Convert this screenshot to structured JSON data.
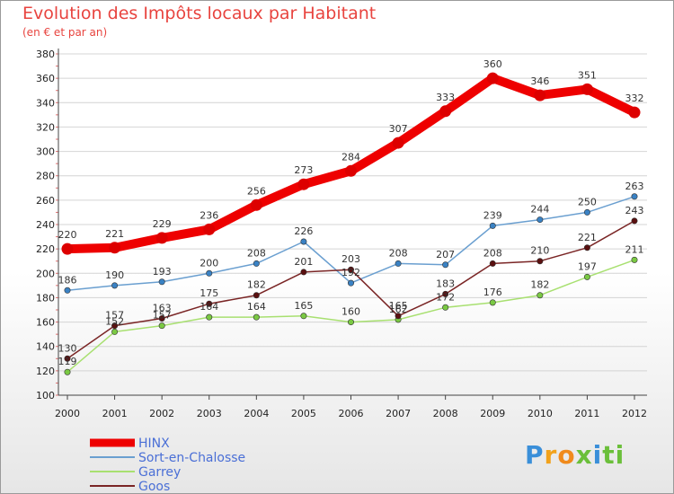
{
  "title": "Evolution des Impôts locaux par Habitant",
  "subtitle": "(en € et par an)",
  "logo": {
    "text": "Proxiti",
    "colors": [
      "#3a8fd9",
      "#f2a21b",
      "#f08a1c",
      "#6bbf3a",
      "#3a8fd9",
      "#6bbf3a",
      "#6bbf3a"
    ]
  },
  "chart_data": {
    "type": "line",
    "title": "Evolution des Impôts locaux par Habitant",
    "subtitle": "(en € et par an)",
    "xlabel": "",
    "ylabel": "",
    "x": [
      "2000",
      "2001",
      "2002",
      "2003",
      "2004",
      "2005",
      "2006",
      "2007",
      "2008",
      "2009",
      "2010",
      "2011",
      "2012"
    ],
    "ylim": [
      100,
      380
    ],
    "yticks": [
      100,
      120,
      140,
      160,
      180,
      200,
      220,
      240,
      260,
      280,
      300,
      320,
      340,
      360,
      380
    ],
    "grid": "horizontal",
    "legend_position": "bottom-left",
    "series": [
      {
        "name": "HINX",
        "color": "#ee0000",
        "marker_color": "#dd0000",
        "values": [
          220,
          221,
          229,
          236,
          256,
          273,
          284,
          307,
          333,
          360,
          346,
          351,
          332
        ],
        "labels": [
          "220",
          "221",
          "229",
          "236",
          "256",
          "273",
          "284",
          "307",
          "333",
          "360",
          "346",
          "351",
          "332"
        ]
      },
      {
        "name": "Sort-en-Chalosse",
        "color": "#6a9fd0",
        "marker_color": "#3a82c4",
        "values": [
          186,
          190,
          193,
          200,
          208,
          226,
          192,
          208,
          207,
          239,
          244,
          250,
          263
        ],
        "labels": [
          "186",
          "190",
          "193",
          "200",
          "208",
          "226",
          "192",
          "208",
          "207",
          "239",
          "244",
          "250",
          "263"
        ]
      },
      {
        "name": "Garrey",
        "color": "#a8e070",
        "marker_color": "#7ac943",
        "values": [
          119,
          152,
          157,
          164,
          164,
          165,
          160,
          162,
          172,
          176,
          182,
          197,
          211
        ],
        "labels": [
          "119",
          "152",
          "157",
          "164",
          "164",
          "165",
          "160",
          "162",
          "172",
          "176",
          "182",
          "197",
          "211"
        ]
      },
      {
        "name": "Goos",
        "color": "#7a2525",
        "marker_color": "#5a1010",
        "values": [
          130,
          157,
          163,
          175,
          182,
          201,
          203,
          165,
          183,
          208,
          210,
          221,
          243
        ],
        "labels": [
          "130",
          "157",
          "163",
          "175",
          "182",
          "201",
          "203",
          "165",
          "183",
          "208",
          "210",
          "221",
          "243"
        ]
      }
    ]
  }
}
